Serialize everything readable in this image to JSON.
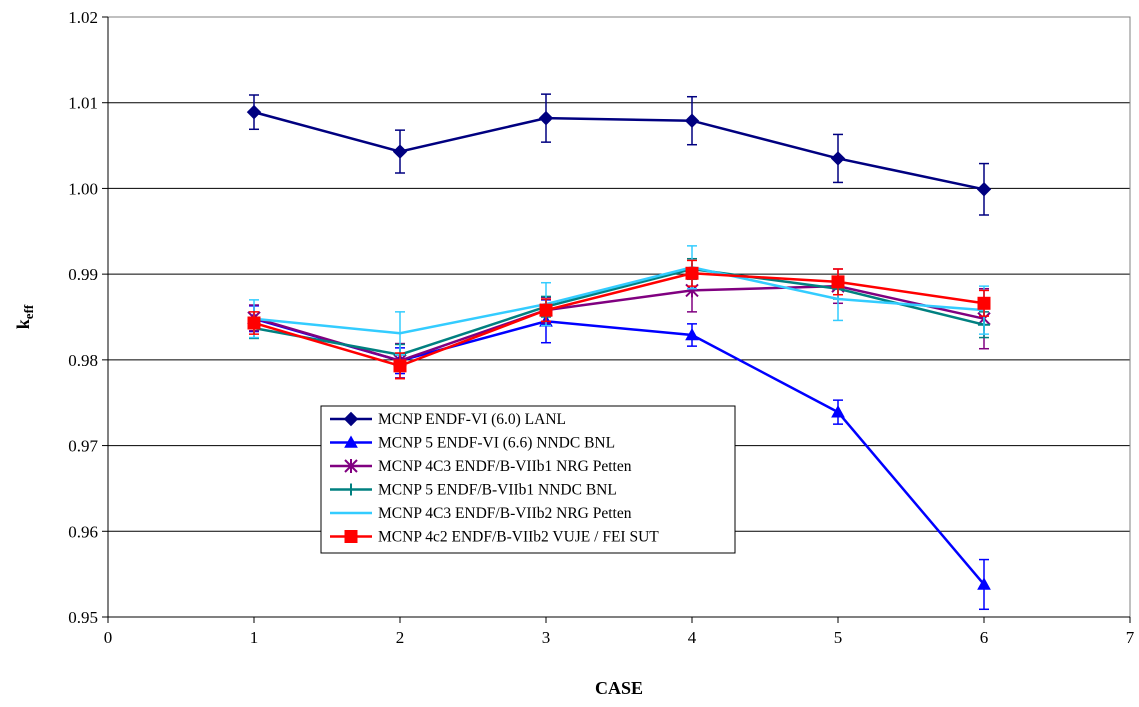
{
  "chart_data": {
    "type": "line",
    "title": "",
    "xlabel": "CASE",
    "ylabel_main": "k",
    "ylabel_sub": "eff",
    "xlim": [
      0,
      7
    ],
    "ylim": [
      0.95,
      1.02
    ],
    "x_ticks": [
      0,
      1,
      2,
      3,
      4,
      5,
      6,
      7
    ],
    "x_tick_labels": [
      "0",
      "1",
      "2",
      "3",
      "4",
      "5",
      "6",
      "7"
    ],
    "y_ticks": [
      0.95,
      0.96,
      0.97,
      0.98,
      0.99,
      1.0,
      1.01,
      1.02
    ],
    "y_tick_labels": [
      "0.95",
      "0.96",
      "0.97",
      "0.98",
      "0.99",
      "1.00",
      "1.01",
      "1.02"
    ],
    "grid": "horizontal major gridlines",
    "legend_position": "lower-left inside plot",
    "x": [
      1,
      2,
      3,
      4,
      5,
      6
    ],
    "series": [
      {
        "name": "MCNP ENDF-VI (6.0) LANL",
        "color": "#000080",
        "marker": "diamond",
        "values": [
          1.0089,
          1.0043,
          1.0082,
          1.0079,
          1.0035,
          0.9999
        ],
        "errors": [
          0.002,
          0.0025,
          0.0028,
          0.0028,
          0.0028,
          0.003
        ]
      },
      {
        "name": "MCNP 5 ENDF-VI (6.6) NNDC BNL",
        "color": "#0000FF",
        "marker": "triangle",
        "values": [
          0.9848,
          0.9799,
          0.9845,
          0.9829,
          0.9739,
          0.9538
        ],
        "errors": [
          0.0015,
          0.0015,
          0.0025,
          0.0013,
          0.0014,
          0.0029
        ]
      },
      {
        "name": "MCNP 4C3 ENDF/B-VIIb1 NRG Petten",
        "color": "#800080",
        "marker": "x-star",
        "values": [
          0.9849,
          0.9799,
          0.9858,
          0.9881,
          0.9886,
          0.9848
        ],
        "errors": [
          0.0015,
          0.002,
          0.0015,
          0.0025,
          0.002,
          0.0035
        ]
      },
      {
        "name": "MCNP 5 ENDF/B-VIIb1 NNDC BNL",
        "color": "#008080",
        "marker": "plus",
        "values": [
          0.9837,
          0.9806,
          0.9862,
          0.9906,
          0.9883,
          0.9841
        ],
        "errors": [
          0.0012,
          0.0012,
          0.0012,
          0.0012,
          0.0012,
          0.0015
        ]
      },
      {
        "name": "MCNP 4C3 ENDF/B-VIIb2 NRG Petten",
        "color": "#33CCFF",
        "marker": "none",
        "values": [
          0.9848,
          0.9831,
          0.9865,
          0.9908,
          0.9871,
          0.9858
        ],
        "errors": [
          0.0022,
          0.0025,
          0.0025,
          0.0025,
          0.0025,
          0.0028
        ]
      },
      {
        "name": "MCNP 4c2 ENDF/B-VIIb2 VUJE / FEI SUT",
        "color": "#FF0000",
        "marker": "square",
        "values": [
          0.9843,
          0.9793,
          0.9858,
          0.9901,
          0.9891,
          0.9866
        ],
        "errors": [
          0.0013,
          0.0015,
          0.0013,
          0.0015,
          0.0015,
          0.0015
        ]
      }
    ]
  }
}
